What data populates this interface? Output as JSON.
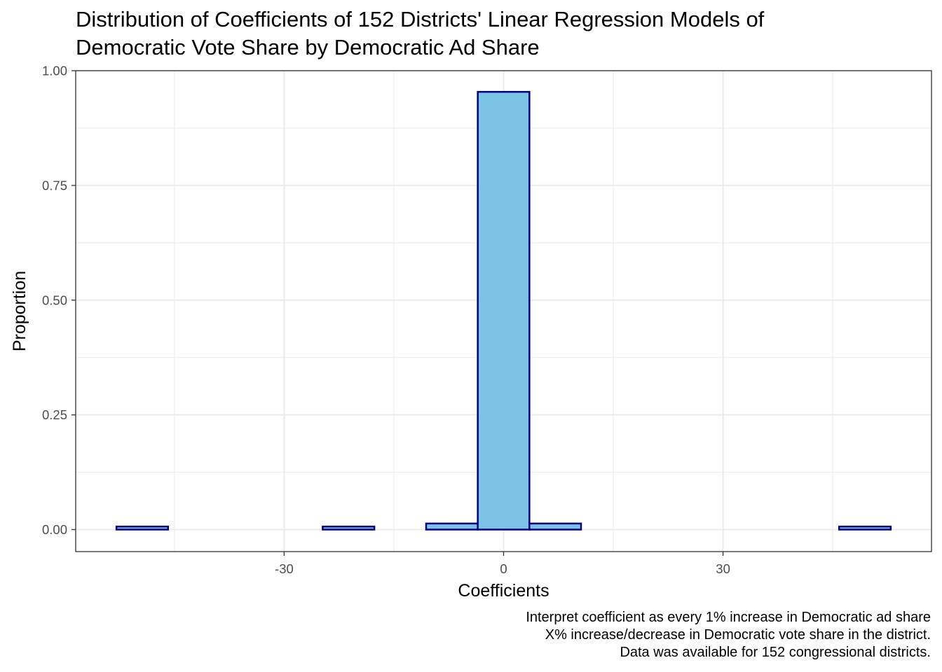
{
  "chart_data": {
    "type": "bar",
    "title_lines": [
      "Distribution of Coefficients of 152 Districts' Linear Regression Models of",
      "Democratic Vote Share by Democratic Ad Share"
    ],
    "xlabel": "Coefficients",
    "ylabel": "Proportion",
    "caption_lines": [
      "Interpret coefficient as every 1% increase in Democratic ad share",
      "X% increase/decrease in Democratic vote share in the district.",
      "Data was available for 152 congressional districts."
    ],
    "xlim": [
      -58.5,
      58.5
    ],
    "ylim": [
      -0.048,
      1.0
    ],
    "x_ticks": [
      -30,
      0,
      30
    ],
    "x_tick_labels": [
      "-30",
      "0",
      "30"
    ],
    "y_ticks": [
      0,
      0.25,
      0.5,
      0.75,
      1.0
    ],
    "y_tick_labels": [
      "0.00",
      "0.25",
      "0.50",
      "0.75",
      "1.00"
    ],
    "bin_width": 7.06,
    "bin_centers": [
      -49.4,
      -42.4,
      -35.3,
      -28.2,
      -21.2,
      -14.1,
      -7.06,
      0,
      7.06,
      14.1,
      21.2,
      28.2,
      35.3,
      42.4,
      49.4
    ],
    "values": [
      0.0066,
      0,
      0,
      0,
      0.0066,
      0,
      0.0132,
      0.9539,
      0.0132,
      0,
      0,
      0,
      0,
      0,
      0.0066
    ],
    "grid": true,
    "colors": {
      "fill": "#7AC3E6",
      "outline": "#000080",
      "grid": "#EBEBEB",
      "panel_border": "#333333"
    }
  }
}
